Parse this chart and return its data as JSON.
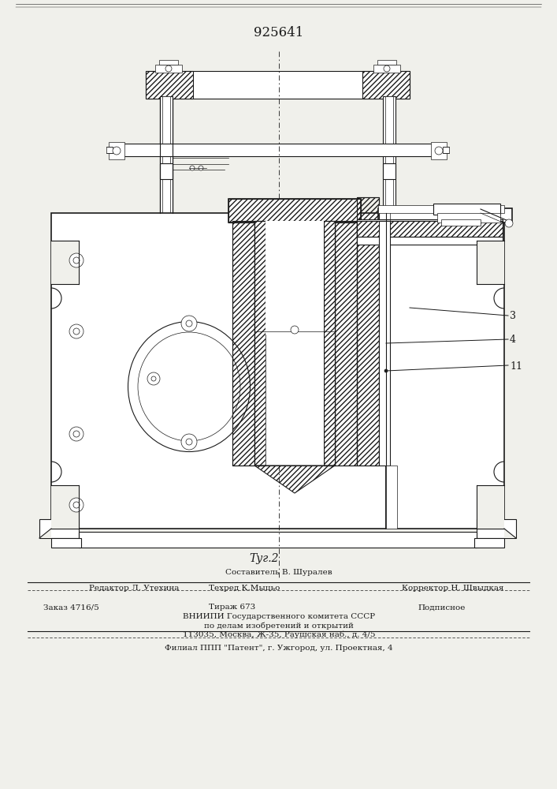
{
  "patent_number": "925641",
  "fig_label": "Τуг.2",
  "label_3": "3",
  "label_4": "4",
  "label_11": "11",
  "editor_line": "Редактор Л. Утехина",
  "composer_line": "Составитель В. Шуралев",
  "techred_line": "Техред К.Мыцьо",
  "corrector_line": "Корректор Н. Швыдкая",
  "order_line": "Заказ 4716/5",
  "tirazh_line": "Тираж 673",
  "podpisnoe_line": "Подписное",
  "vniip_line": "ВНИИПИ Государственного комитета СССР",
  "po_delam_line": "по делам изобретений и открытий",
  "address_line": "113035, Москва, Ж-35, Раушская наб., д. 4/5",
  "filial_line": "Филиал ППП \"Патент\", г. Ужгород, ул. Проектная, 4",
  "bg_color": "#f0f0eb",
  "line_color": "#1a1a1a"
}
